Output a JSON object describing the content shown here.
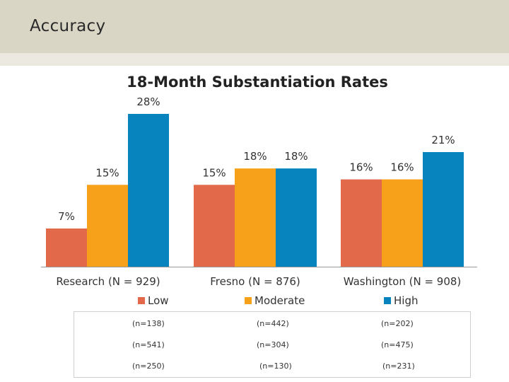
{
  "slide": {
    "title": "Accuracy"
  },
  "colors": {
    "header_band": "#d9d6c6",
    "low": "#e2694a",
    "moderate": "#f7a11a",
    "high": "#0783bd"
  },
  "chart_data": {
    "type": "bar",
    "title": "18-Month Substantiation Rates",
    "categories": [
      "Research (N = 929)",
      "Fresno (N = 876)",
      "Washington (N = 908)"
    ],
    "series": [
      {
        "name": "Low",
        "values": [
          7,
          15,
          16
        ],
        "labels": [
          "7%",
          "15%",
          "16%"
        ]
      },
      {
        "name": "Moderate",
        "values": [
          15,
          18,
          16
        ],
        "labels": [
          "15%",
          "18%",
          "16%"
        ]
      },
      {
        "name": "High",
        "values": [
          28,
          18,
          21
        ],
        "labels": [
          "28%",
          "18%",
          "21%"
        ]
      }
    ],
    "ylim": [
      0,
      28
    ],
    "grid": false,
    "legend_position": "bottom"
  },
  "counts_table": {
    "rows": [
      [
        "(n=138)",
        "(n=442)",
        "(n=202)"
      ],
      [
        "(n=541)",
        "(n=304)",
        "(n=475)"
      ],
      [
        "(n=250)",
        "(n=130)",
        "(n=231)"
      ]
    ]
  }
}
